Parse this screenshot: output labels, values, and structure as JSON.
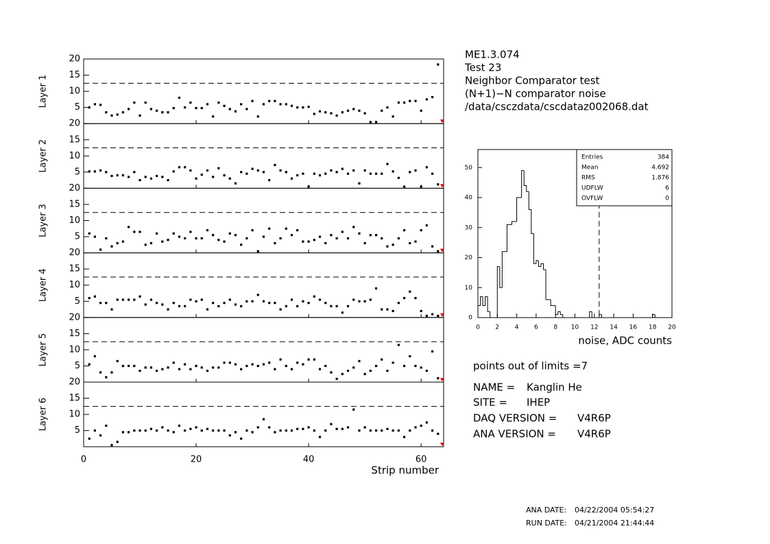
{
  "header": {
    "lines": [
      "ME1.3.074",
      "Test 23",
      "Neighbor Comparator test",
      "(N+1)−N comparator noise",
      "/data/csczdata/cscdataz002068.dat"
    ]
  },
  "summary": "points out of limits =7",
  "info": [
    {
      "label": "NAME =",
      "value": "Kanglin He"
    },
    {
      "label": "SITE =",
      "value": "IHEP"
    },
    {
      "label": "DAQ VERSION =",
      "value": "V4R6P"
    },
    {
      "label": "ANA VERSION =",
      "value": "V4R6P"
    }
  ],
  "dates": [
    {
      "label": "ANA DATE:",
      "value": "04/22/2004 05:54:27"
    },
    {
      "label": "RUN DATE:",
      "value": "04/21/2004 21:44:44"
    }
  ],
  "chart_data": [
    {
      "type": "scatter",
      "ylabel": "Layer 1",
      "xlim": [
        0,
        64
      ],
      "xticks": [
        0,
        20,
        40,
        60
      ],
      "ylim": [
        0,
        20
      ],
      "yticks": [
        5,
        10,
        15,
        20
      ],
      "reference_line": 12.5,
      "color": "#000000",
      "x": [
        1,
        2,
        3,
        4,
        5,
        6,
        7,
        8,
        9,
        10,
        11,
        12,
        13,
        14,
        15,
        16,
        17,
        18,
        19,
        20,
        21,
        22,
        23,
        24,
        25,
        26,
        27,
        28,
        29,
        30,
        31,
        32,
        33,
        34,
        35,
        36,
        37,
        38,
        39,
        40,
        41,
        42,
        43,
        44,
        45,
        46,
        47,
        48,
        49,
        50,
        51,
        52,
        53,
        54,
        55,
        56,
        57,
        58,
        59,
        60,
        61,
        62,
        63
      ],
      "values": [
        5,
        6,
        5.8,
        3.5,
        2.5,
        2.8,
        3.5,
        4.5,
        6.5,
        2.5,
        6.5,
        4.5,
        4,
        3.5,
        3.5,
        4.8,
        8,
        5,
        6.5,
        4.8,
        4.8,
        6,
        2.2,
        6.5,
        5.5,
        4.5,
        3.8,
        6,
        4.5,
        7,
        2.2,
        6,
        7,
        7,
        6,
        6,
        5.5,
        5,
        5,
        5.2,
        3,
        3.8,
        3.5,
        3.2,
        2.5,
        3.5,
        4,
        4.5,
        4,
        3.2,
        0.5,
        0.5,
        4,
        5,
        2.2,
        6.5,
        6.5,
        7,
        7,
        4,
        7.5,
        8.2,
        18.3
      ]
    },
    {
      "type": "scatter",
      "ylabel": "Layer 2",
      "xlim": [
        0,
        64
      ],
      "xticks": [
        0,
        20,
        40,
        60
      ],
      "ylim": [
        0,
        20
      ],
      "yticks": [
        5,
        10,
        15,
        20
      ],
      "reference_line": 12.5,
      "color": "#000000",
      "x": [
        1,
        2,
        3,
        4,
        5,
        6,
        7,
        8,
        9,
        10,
        11,
        12,
        13,
        14,
        15,
        16,
        17,
        18,
        19,
        20,
        21,
        22,
        23,
        24,
        25,
        26,
        27,
        28,
        29,
        30,
        31,
        32,
        33,
        34,
        35,
        36,
        37,
        38,
        39,
        40,
        41,
        42,
        43,
        44,
        45,
        46,
        47,
        48,
        49,
        50,
        51,
        52,
        53,
        54,
        55,
        56,
        57,
        58,
        59,
        60,
        61,
        62,
        63
      ],
      "values": [
        5.2,
        5.2,
        5.5,
        5,
        3.8,
        4,
        4,
        3.5,
        5,
        2.5,
        3.5,
        3,
        3.8,
        3.5,
        2.5,
        5.2,
        6.5,
        6.5,
        5.5,
        3,
        4.2,
        5.5,
        3.5,
        6.2,
        4,
        3,
        1.5,
        5,
        4.5,
        6,
        5.5,
        5,
        2.5,
        7.2,
        5.5,
        5,
        3,
        4,
        4.5,
        0.5,
        4.5,
        4,
        4.5,
        5.5,
        5,
        6,
        4.5,
        5.5,
        1.5,
        5.5,
        4.5,
        4.5,
        4.5,
        7.5,
        5.2,
        3.2,
        0.5,
        5,
        5.5,
        0.5,
        6.5,
        4.5,
        1.2
      ]
    },
    {
      "type": "scatter",
      "ylabel": "Layer 3",
      "xlim": [
        0,
        64
      ],
      "xticks": [
        0,
        20,
        40,
        60
      ],
      "ylim": [
        0,
        20
      ],
      "yticks": [
        5,
        10,
        15,
        20
      ],
      "reference_line": 12.5,
      "color": "#000000",
      "x": [
        1,
        2,
        3,
        4,
        5,
        6,
        7,
        8,
        9,
        10,
        11,
        12,
        13,
        14,
        15,
        16,
        17,
        18,
        19,
        20,
        21,
        22,
        23,
        24,
        25,
        26,
        27,
        28,
        29,
        30,
        31,
        32,
        33,
        34,
        35,
        36,
        37,
        38,
        39,
        40,
        41,
        42,
        43,
        44,
        45,
        46,
        47,
        48,
        49,
        50,
        51,
        52,
        53,
        54,
        55,
        56,
        57,
        58,
        59,
        60,
        61,
        62,
        63
      ],
      "values": [
        6,
        5,
        1,
        4.5,
        2,
        3,
        3.5,
        8,
        6.5,
        6.5,
        2.5,
        3,
        6,
        3.5,
        4,
        6,
        5,
        4.5,
        6.5,
        4.5,
        4.5,
        7,
        5.5,
        4,
        3.5,
        6,
        5.5,
        2.5,
        4.5,
        7,
        0.5,
        5,
        7.5,
        3,
        4.5,
        7.5,
        5.5,
        7,
        3.5,
        3.5,
        4,
        5,
        3,
        5.5,
        4.5,
        6.5,
        4.5,
        8,
        6,
        3,
        5.5,
        5.5,
        4.5,
        2,
        2.5,
        4.5,
        7,
        3,
        3.5,
        7,
        8.5,
        2,
        0.5
      ]
    },
    {
      "type": "scatter",
      "ylabel": "Layer 4",
      "xlim": [
        0,
        64
      ],
      "xticks": [
        0,
        20,
        40,
        60
      ],
      "ylim": [
        0,
        20
      ],
      "yticks": [
        5,
        10,
        15,
        20
      ],
      "reference_line": 12.5,
      "color": "#000000",
      "x": [
        1,
        2,
        3,
        4,
        5,
        6,
        7,
        8,
        9,
        10,
        11,
        12,
        13,
        14,
        15,
        16,
        17,
        18,
        19,
        20,
        21,
        22,
        23,
        24,
        25,
        26,
        27,
        28,
        29,
        30,
        31,
        32,
        33,
        34,
        35,
        36,
        37,
        38,
        39,
        40,
        41,
        42,
        43,
        44,
        45,
        46,
        47,
        48,
        49,
        50,
        51,
        52,
        53,
        54,
        55,
        56,
        57,
        58,
        59,
        60,
        61,
        62,
        63
      ],
      "values": [
        6,
        6.5,
        4.5,
        4.5,
        2.5,
        5.5,
        5.5,
        5.5,
        5.5,
        6.5,
        4,
        5.5,
        4.5,
        4,
        2.5,
        4.5,
        3.5,
        3.5,
        5.5,
        5,
        5.5,
        2.5,
        4.5,
        3.5,
        4.5,
        5.5,
        4,
        3.5,
        5,
        5,
        7,
        5,
        4.5,
        4.5,
        2.5,
        3.5,
        5.5,
        3.5,
        5,
        4.5,
        6.5,
        5.5,
        4.5,
        3.5,
        3.5,
        1.5,
        3.5,
        5.5,
        5,
        5,
        5.5,
        9,
        2.5,
        2.5,
        2,
        4.5,
        6,
        8,
        6,
        2,
        0.5,
        1,
        0.5
      ]
    },
    {
      "type": "scatter",
      "ylabel": "Layer 5",
      "xlim": [
        0,
        64
      ],
      "xticks": [
        0,
        20,
        40,
        60
      ],
      "ylim": [
        0,
        20
      ],
      "yticks": [
        5,
        10,
        15,
        20
      ],
      "reference_line": 12.5,
      "color": "#000000",
      "x": [
        1,
        2,
        3,
        4,
        5,
        6,
        7,
        8,
        9,
        10,
        11,
        12,
        13,
        14,
        15,
        16,
        17,
        18,
        19,
        20,
        21,
        22,
        23,
        24,
        25,
        26,
        27,
        28,
        29,
        30,
        31,
        32,
        33,
        34,
        35,
        36,
        37,
        38,
        39,
        40,
        41,
        42,
        43,
        44,
        45,
        46,
        47,
        48,
        49,
        50,
        51,
        52,
        53,
        54,
        55,
        56,
        57,
        58,
        59,
        60,
        61,
        62,
        63
      ],
      "values": [
        5.5,
        8,
        3,
        1.5,
        3,
        6.5,
        5,
        5,
        5,
        3.5,
        4.5,
        4.5,
        3.5,
        4,
        4.5,
        6,
        4,
        5.5,
        4,
        5,
        4.5,
        3.5,
        4.5,
        4.5,
        6,
        6,
        5.5,
        4,
        5,
        5.5,
        5,
        5.5,
        6,
        4,
        7,
        5,
        4,
        6,
        5.5,
        7,
        7,
        4,
        5,
        3,
        1,
        2.5,
        3.5,
        4.5,
        6.5,
        2.5,
        3.5,
        5,
        7,
        3.5,
        6,
        11.5,
        5,
        8,
        5,
        4.5,
        3.5,
        9.5,
        1.2
      ]
    },
    {
      "type": "scatter",
      "ylabel": "Layer 6",
      "xlabel": "Strip number",
      "xlim": [
        0,
        64
      ],
      "xticks": [
        0,
        20,
        40,
        60
      ],
      "ylim": [
        0,
        20
      ],
      "yticks": [
        5,
        10,
        15,
        20
      ],
      "reference_line": 12.5,
      "color": "#000000",
      "x": [
        1,
        2,
        3,
        4,
        5,
        6,
        7,
        8,
        9,
        10,
        11,
        12,
        13,
        14,
        15,
        16,
        17,
        18,
        19,
        20,
        21,
        22,
        23,
        24,
        25,
        26,
        27,
        28,
        29,
        30,
        31,
        32,
        33,
        34,
        35,
        36,
        37,
        38,
        39,
        40,
        41,
        42,
        43,
        44,
        45,
        46,
        47,
        48,
        49,
        50,
        51,
        52,
        53,
        54,
        55,
        56,
        57,
        58,
        59,
        60,
        61,
        62,
        63
      ],
      "values": [
        2.5,
        5,
        3.5,
        6.5,
        0.5,
        1.5,
        4.5,
        4.5,
        5,
        5,
        5,
        5.5,
        5,
        6,
        5,
        4.5,
        6.5,
        5,
        5.5,
        6,
        5,
        5.5,
        5,
        5,
        5,
        3.5,
        4.5,
        2.5,
        5,
        4.5,
        6,
        8.5,
        6,
        4.5,
        5,
        5,
        5,
        5.5,
        5.5,
        6,
        5,
        3,
        5,
        7,
        5.5,
        5.5,
        6,
        11.5,
        5,
        6,
        5,
        5,
        5,
        5.5,
        5,
        5,
        3,
        5,
        6,
        6.5,
        7.5,
        5,
        4
      ]
    },
    {
      "type": "histogram",
      "xlabel": "noise, ADC counts",
      "xlim": [
        0,
        20
      ],
      "xticks": [
        0,
        2,
        4,
        6,
        8,
        10,
        12,
        14,
        16,
        18,
        20
      ],
      "ylim": [
        0,
        56
      ],
      "yticks": [
        0,
        10,
        20,
        30,
        40,
        50
      ],
      "reference_line": 12.5,
      "color": "#000000",
      "bins": [
        0,
        0.25,
        0.5,
        0.75,
        1,
        1.25,
        1.5,
        1.75,
        2,
        2.25,
        2.5,
        2.75,
        3,
        3.25,
        3.5,
        3.75,
        4,
        4.25,
        4.5,
        4.75,
        5,
        5.25,
        5.5,
        5.75,
        6,
        6.25,
        6.5,
        6.75,
        7,
        7.25,
        7.5,
        7.75,
        8,
        8.25,
        8.5,
        8.75,
        9,
        9.25,
        9.5,
        9.75,
        10,
        10.25,
        10.5,
        10.75,
        11,
        11.25,
        11.5,
        11.75,
        12,
        12.25,
        12.5,
        12.75,
        13,
        13.25,
        13.5,
        13.75,
        14,
        14.25,
        14.5,
        14.75,
        15,
        15.25,
        15.5,
        15.75,
        16,
        16.25,
        16.5,
        16.75,
        17,
        17.25,
        17.5,
        17.75,
        18,
        18.25,
        18.5,
        18.75,
        19,
        19.25,
        19.5,
        19.75,
        20
      ],
      "values": [
        4,
        7,
        4,
        7,
        2,
        0,
        0,
        0,
        17,
        10,
        22,
        22,
        31,
        31,
        32,
        32,
        40,
        40,
        49,
        44,
        42,
        36,
        28,
        18,
        19,
        17,
        18,
        16,
        6,
        6,
        4,
        4,
        1,
        2,
        1,
        0,
        0,
        0,
        0,
        0,
        0,
        0,
        0,
        0,
        0,
        0,
        2,
        0,
        0,
        0,
        1,
        0,
        0,
        0,
        0,
        0,
        0,
        0,
        0,
        0,
        0,
        0,
        0,
        0,
        0,
        0,
        0,
        0,
        0,
        0,
        0,
        0,
        1,
        0,
        0,
        0,
        0,
        0,
        0,
        0
      ],
      "stats": [
        {
          "label": "Entries",
          "value": 384
        },
        {
          "label": "Mean",
          "value": 4.692
        },
        {
          "label": "RMS",
          "value": 1.876
        },
        {
          "label": "UDFLW",
          "value": 6
        },
        {
          "label": "OVFLW",
          "value": 0
        }
      ]
    }
  ]
}
